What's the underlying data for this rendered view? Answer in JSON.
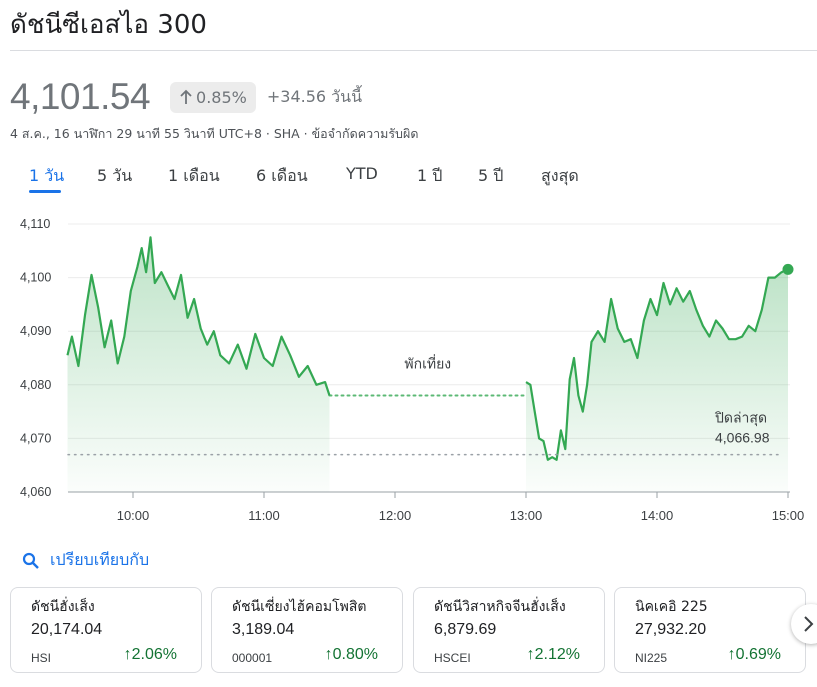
{
  "header": {
    "title": "ดัชนีซีเอสไอ 300",
    "price": "4,101.54",
    "percent_change": "0.85%",
    "change": "+34.56 วันนี้",
    "meta": "4 ส.ค., 16 นาฬิกา 29 นาที 55 วินาที UTC+8 · SHA · ข้อจำกัดความรับผิด"
  },
  "tabs": [
    {
      "label": "1 วัน",
      "active": true
    },
    {
      "label": "5 วัน"
    },
    {
      "label": "1 เดือน"
    },
    {
      "label": "6 เดือน"
    },
    {
      "label": "YTD"
    },
    {
      "label": "1 ปี"
    },
    {
      "label": "5 ปี"
    },
    {
      "label": "สูงสุด"
    }
  ],
  "chart_data": {
    "type": "line",
    "xlabels": [
      "10:00",
      "11:00",
      "12:00",
      "13:00",
      "14:00",
      "15:00"
    ],
    "ylabels": [
      "4,110",
      "4,100",
      "4,090",
      "4,080",
      "4,070",
      "4,060"
    ],
    "ylim": [
      4060,
      4110
    ],
    "previous_close": 4066.98,
    "previous_close_label": "ปิดล่าสุด",
    "previous_close_value": "4,066.98",
    "lunch_break_label": "พักเที่ยง",
    "lunch_break": [
      "11:30",
      "13:00"
    ],
    "line_color": "#34a853",
    "series": [
      {
        "x": [
          "09:30",
          "09:32",
          "09:35",
          "09:38",
          "09:41",
          "09:44",
          "09:47",
          "09:50",
          "09:53",
          "09:56",
          "09:59",
          "10:02",
          "10:04",
          "10:06",
          "10:08",
          "10:10",
          "10:13",
          "10:16",
          "10:19",
          "10:22",
          "10:25",
          "10:28",
          "10:31",
          "10:34",
          "10:37",
          "10:40",
          "10:44",
          "10:48",
          "10:52",
          "10:56",
          "11:00",
          "11:04",
          "11:08",
          "11:12",
          "11:16",
          "11:20",
          "11:24",
          "11:28",
          "11:30"
        ],
        "values": [
          4085.5,
          4089,
          4083.5,
          4093,
          4100.5,
          4094.5,
          4087,
          4092,
          4084,
          4089,
          4097.5,
          4102,
          4105.5,
          4101,
          4107.5,
          4099,
          4101,
          4098.5,
          4096,
          4100.5,
          4092.5,
          4096,
          4090.5,
          4087.5,
          4090,
          4085.5,
          4084,
          4087.5,
          4083,
          4089.5,
          4085,
          4083.5,
          4089,
          4085.5,
          4081.5,
          4083.5,
          4080,
          4080.5,
          4078
        ]
      },
      {
        "x": [
          "13:00",
          "13:02",
          "13:04",
          "13:06",
          "13:08",
          "13:10",
          "13:12",
          "13:14",
          "13:16",
          "13:18",
          "13:20",
          "13:22",
          "13:24",
          "13:26",
          "13:28",
          "13:30",
          "13:33",
          "13:36",
          "13:39",
          "13:42",
          "13:45",
          "13:48",
          "13:51",
          "13:54",
          "13:57",
          "14:00",
          "14:03",
          "14:06",
          "14:09",
          "14:12",
          "14:15",
          "14:18",
          "14:21",
          "14:24",
          "14:27",
          "14:30",
          "14:33",
          "14:36",
          "14:39",
          "14:42",
          "14:45",
          "14:48",
          "14:51",
          "14:54",
          "14:57",
          "15:00"
        ],
        "values": [
          4080.5,
          4080,
          4075,
          4070,
          4069.5,
          4066,
          4066.5,
          4066,
          4071.5,
          4068,
          4081,
          4085,
          4078,
          4075,
          4080,
          4088,
          4090,
          4088,
          4096,
          4090.5,
          4088,
          4088.5,
          4085,
          4092,
          4096,
          4093,
          4099,
          4095,
          4098,
          4095.5,
          4097.5,
          4094,
          4091,
          4089,
          4092,
          4090.5,
          4088.5,
          4088.5,
          4089,
          4091,
          4090,
          4094,
          4100,
          4100,
          4101,
          4101.54
        ]
      }
    ]
  },
  "compare": {
    "label": "เปรียบเทียบกับ"
  },
  "cards": [
    {
      "name": "ดัชนีฮั่งเส็ง",
      "value": "20,174.04",
      "ticker": "HSI",
      "pct": "2.06%"
    },
    {
      "name": "ดัชนีเซี่ยงไฮ้คอมโพสิต",
      "value": "3,189.04",
      "ticker": "000001",
      "pct": "0.80%"
    },
    {
      "name": "ดัชนีวิสาหกิจจีนฮั่งเส็ง",
      "value": "6,879.69",
      "ticker": "HSCEI",
      "pct": "2.12%"
    },
    {
      "name": "นิคเคอิ 225",
      "value": "27,932.20",
      "ticker": "NI225",
      "pct": "0.69%"
    }
  ],
  "icons": {
    "up_arrow": "arrow-up-icon",
    "search": "search-icon",
    "next": "chevron-right-icon"
  }
}
